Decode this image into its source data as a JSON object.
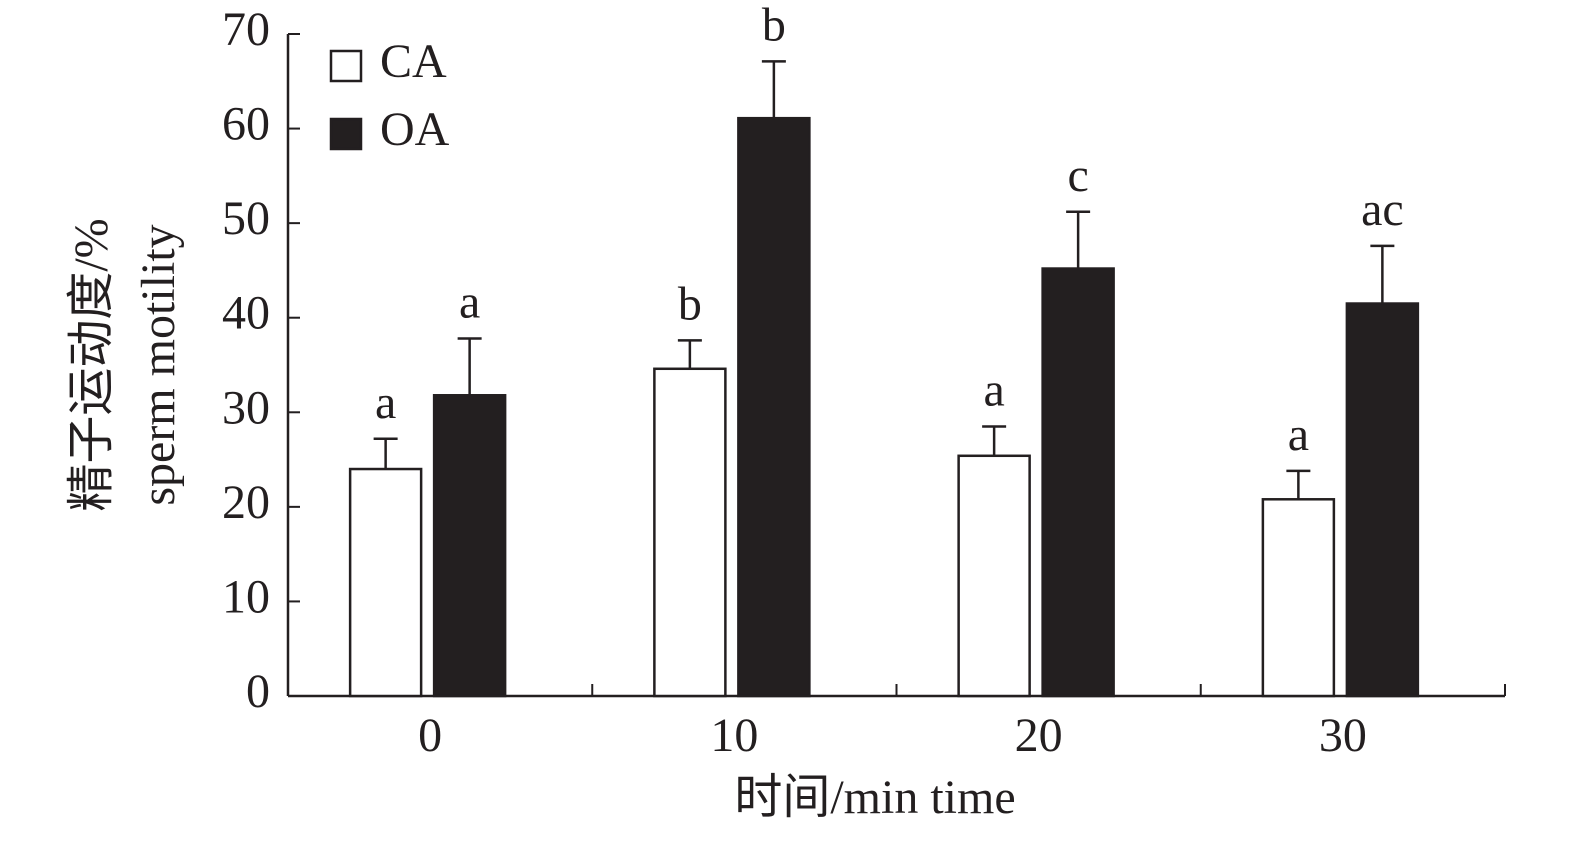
{
  "chart_data": {
    "type": "bar",
    "x_label": "时间/min time",
    "y_label": [
      "精子运动度/%",
      "sperm motility"
    ],
    "categories": [
      "0",
      "10",
      "20",
      "30"
    ],
    "series": [
      {
        "name": "CA",
        "color": "#ffffff",
        "values": [
          24,
          34.6,
          25.4,
          20.8
        ],
        "errors": [
          3.2,
          3,
          3.1,
          3
        ],
        "error_direction": "both",
        "labels": [
          "a",
          "b",
          "a",
          "a"
        ]
      },
      {
        "name": "OA",
        "color": "#231f20",
        "values": [
          31.8,
          61.1,
          45.2,
          41.5
        ],
        "errors": [
          6,
          6,
          6,
          6.1
        ],
        "error_direction": "up",
        "labels": [
          "a",
          "b",
          "c",
          "ac"
        ]
      }
    ],
    "ylim": [
      0,
      70
    ],
    "yticks": [
      0,
      10,
      20,
      30,
      40,
      50,
      60,
      70
    ],
    "legend": "upper left"
  }
}
